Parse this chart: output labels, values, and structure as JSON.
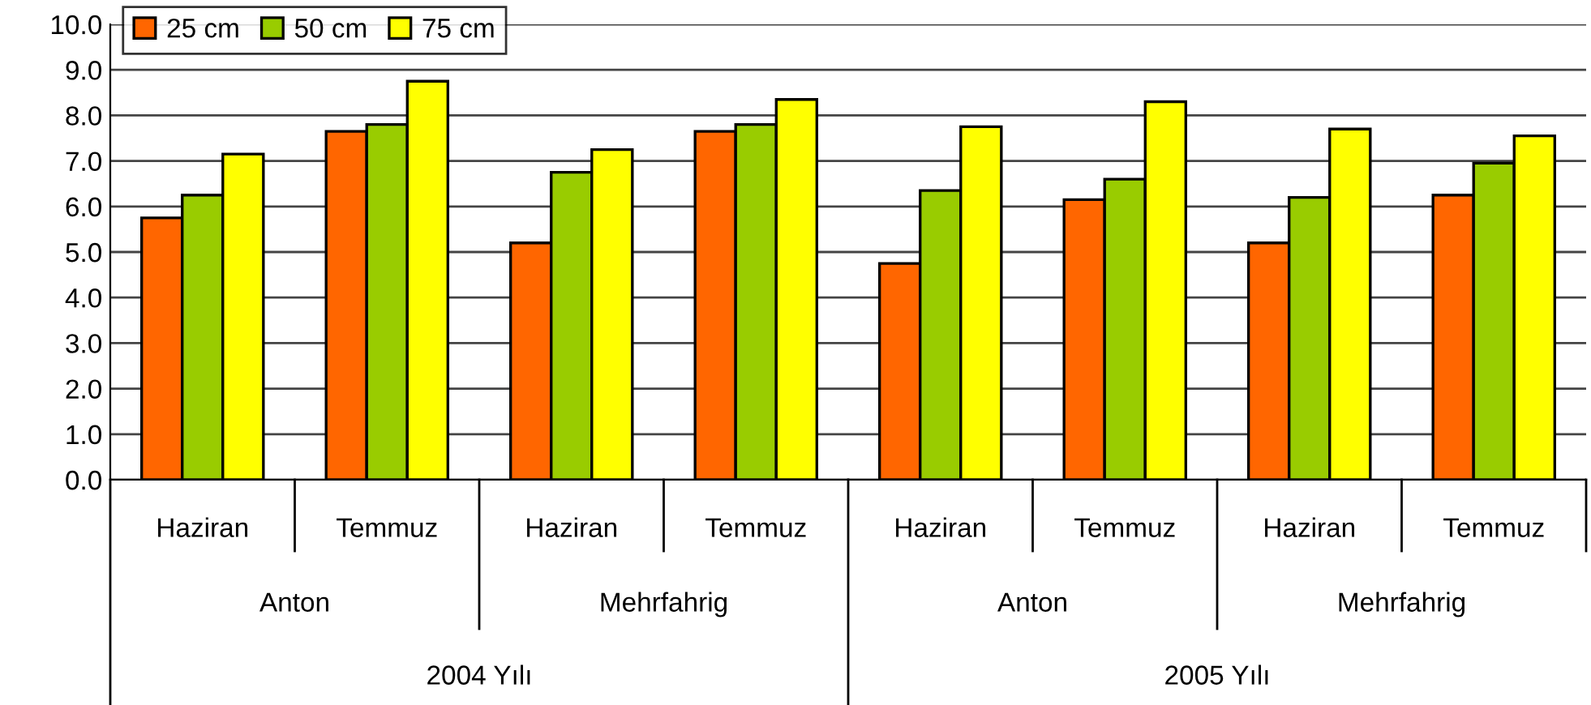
{
  "chart_data": {
    "type": "bar",
    "categories": [
      "Haziran",
      "Temmuz",
      "Haziran",
      "Temmuz",
      "Haziran",
      "Temmuz",
      "Haziran",
      "Temmuz"
    ],
    "series": [
      {
        "name": "25 cm",
        "color": "#ff6600",
        "values": [
          5.75,
          7.65,
          5.2,
          7.65,
          4.75,
          6.15,
          5.2,
          6.25
        ]
      },
      {
        "name": "50 cm",
        "color": "#99cc00",
        "values": [
          6.25,
          7.8,
          6.75,
          7.8,
          6.35,
          6.6,
          6.2,
          6.95
        ]
      },
      {
        "name": "75 cm",
        "color": "#ffff00",
        "values": [
          7.15,
          8.75,
          7.25,
          8.35,
          7.75,
          8.3,
          7.7,
          7.55
        ]
      }
    ],
    "ylim": [
      0,
      10
    ],
    "yticks": [
      {
        "value": 0,
        "label": "0.0"
      },
      {
        "value": 1,
        "label": "1.0"
      },
      {
        "value": 2,
        "label": "2.0"
      },
      {
        "value": 3,
        "label": "3.0"
      },
      {
        "value": 4,
        "label": "4.0"
      },
      {
        "value": 5,
        "label": "5.0"
      },
      {
        "value": 6,
        "label": "6.0"
      },
      {
        "value": 7,
        "label": "7.0"
      },
      {
        "value": 8,
        "label": "8.0"
      },
      {
        "value": 9,
        "label": "9.0"
      },
      {
        "value": 10,
        "label": "10.0"
      }
    ],
    "annotations": [
      "Anton",
      "Mehrfahrig",
      "Anton",
      "Mehrfahrig",
      "2004 Yılı",
      "2005 Yılı"
    ],
    "grid": "y",
    "legend": "top left"
  }
}
